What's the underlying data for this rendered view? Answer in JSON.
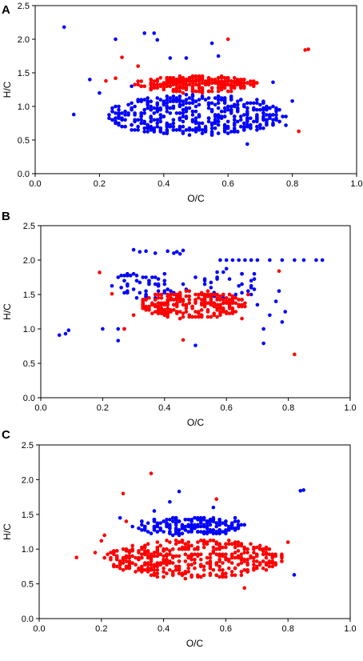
{
  "chart_data": [
    {
      "type": "scatter",
      "panel": "A",
      "xlabel": "O/C",
      "ylabel": "H/C",
      "xlim": [
        0.0,
        1.0
      ],
      "ylim": [
        0.0,
        2.5
      ],
      "xticks": [
        "0.0",
        "0.2",
        "0.4",
        "0.6",
        "0.8",
        "1.0"
      ],
      "yticks": [
        "0.0",
        "0.5",
        "1.0",
        "1.5",
        "2.0",
        "2.5"
      ],
      "colors": [
        "#0000ff",
        "#ff0000"
      ],
      "series": [
        {
          "color": "#0000ff",
          "clusters": [
            {
              "cx": 0.5,
              "cy": 0.87,
              "rx": 0.28,
              "ry": 0.3,
              "n": 430
            }
          ],
          "points": [
            [
              0.09,
              2.18
            ],
            [
              0.12,
              0.88
            ],
            [
              0.17,
              1.4
            ],
            [
              0.25,
              2.0
            ],
            [
              0.34,
              2.09
            ],
            [
              0.37,
              2.09
            ],
            [
              0.38,
              1.99
            ],
            [
              0.47,
              1.72
            ],
            [
              0.55,
              1.94
            ],
            [
              0.57,
              1.75
            ],
            [
              0.2,
              1.2
            ],
            [
              0.3,
              1.3
            ],
            [
              0.66,
              0.44
            ],
            [
              0.78,
              0.72
            ],
            [
              0.8,
              1.08
            ],
            [
              0.74,
              1.36
            ],
            [
              0.42,
              1.72
            ]
          ]
        },
        {
          "color": "#ff0000",
          "clusters": [
            {
              "cx": 0.5,
              "cy": 1.33,
              "rx": 0.19,
              "ry": 0.13,
              "n": 260
            }
          ],
          "points": [
            [
              0.27,
              1.73
            ],
            [
              0.25,
              1.42
            ],
            [
              0.6,
              2.0
            ],
            [
              0.84,
              1.84
            ],
            [
              0.85,
              1.85
            ],
            [
              0.82,
              0.63
            ],
            [
              0.64,
              1.4
            ],
            [
              0.32,
              1.6
            ],
            [
              0.22,
              1.38
            ]
          ]
        }
      ]
    },
    {
      "type": "scatter",
      "panel": "B",
      "xlabel": "O/C",
      "ylabel": "H/C",
      "xlim": [
        0.0,
        1.0
      ],
      "ylim": [
        0.0,
        2.5
      ],
      "xticks": [
        "0.0",
        "0.2",
        "0.4",
        "0.6",
        "0.8",
        "1.0"
      ],
      "yticks": [
        "0.0",
        "0.5",
        "1.0",
        "1.5",
        "2.0",
        "2.5"
      ],
      "colors": [
        "#0000ff",
        "#ff0000"
      ],
      "series": [
        {
          "color": "#0000ff",
          "clusters": [
            {
              "cx": 0.35,
              "cy": 1.62,
              "rx": 0.13,
              "ry": 0.2,
              "n": 55
            },
            {
              "cx": 0.62,
              "cy": 1.65,
              "rx": 0.1,
              "ry": 0.22,
              "n": 30
            }
          ],
          "points": [
            [
              0.06,
              0.91
            ],
            [
              0.08,
              0.93
            ],
            [
              0.09,
              0.98
            ],
            [
              0.2,
              1.0
            ],
            [
              0.25,
              1.0
            ],
            [
              0.27,
              1.0
            ],
            [
              0.25,
              0.83
            ],
            [
              0.3,
              2.15
            ],
            [
              0.32,
              2.12
            ],
            [
              0.34,
              2.13
            ],
            [
              0.37,
              2.1
            ],
            [
              0.41,
              2.13
            ],
            [
              0.43,
              2.1
            ],
            [
              0.44,
              2.12
            ],
            [
              0.45,
              2.09
            ],
            [
              0.46,
              2.14
            ],
            [
              0.5,
              1.75
            ],
            [
              0.5,
              0.76
            ],
            [
              0.58,
              2.0
            ],
            [
              0.6,
              2.0
            ],
            [
              0.62,
              2.0
            ],
            [
              0.64,
              2.0
            ],
            [
              0.66,
              2.0
            ],
            [
              0.68,
              2.0
            ],
            [
              0.7,
              2.0
            ],
            [
              0.74,
              2.0
            ],
            [
              0.78,
              2.0
            ],
            [
              0.82,
              2.0
            ],
            [
              0.85,
              2.0
            ],
            [
              0.89,
              2.0
            ],
            [
              0.91,
              2.0
            ],
            [
              0.72,
              1.0
            ],
            [
              0.72,
              0.79
            ],
            [
              0.74,
              1.2
            ],
            [
              0.76,
              1.4
            ],
            [
              0.78,
              1.1
            ],
            [
              0.79,
              1.25
            ],
            [
              0.77,
              1.55
            ],
            [
              0.65,
              1.8
            ],
            [
              0.68,
              1.5
            ],
            [
              0.7,
              1.35
            ]
          ]
        },
        {
          "color": "#ff0000",
          "clusters": [
            {
              "cx": 0.49,
              "cy": 1.35,
              "rx": 0.17,
              "ry": 0.2,
              "n": 250
            }
          ],
          "points": [
            [
              0.19,
              1.82
            ],
            [
              0.27,
              1.0
            ],
            [
              0.23,
              1.51
            ],
            [
              0.46,
              0.84
            ],
            [
              0.77,
              1.84
            ],
            [
              0.82,
              0.63
            ],
            [
              0.33,
              1.3
            ],
            [
              0.65,
              1.15
            ],
            [
              0.3,
              1.2
            ],
            [
              0.67,
              1.5
            ]
          ]
        }
      ]
    },
    {
      "type": "scatter",
      "panel": "C",
      "xlabel": "O/C",
      "ylabel": "H/C",
      "xlim": [
        0.0,
        1.0
      ],
      "ylim": [
        0.0,
        2.5
      ],
      "xticks": [
        "0.0",
        "0.2",
        "0.4",
        "0.6",
        "0.8",
        "1.0"
      ],
      "yticks": [
        "0.0",
        "0.5",
        "1.0",
        "1.5",
        "2.0",
        "2.5"
      ],
      "colors": [
        "#0000ff",
        "#ff0000"
      ],
      "series": [
        {
          "color": "#0000ff",
          "clusters": [
            {
              "cx": 0.48,
              "cy": 1.33,
              "rx": 0.18,
              "ry": 0.13,
              "n": 200
            }
          ],
          "points": [
            [
              0.45,
              1.83
            ],
            [
              0.84,
              1.84
            ],
            [
              0.85,
              1.85
            ],
            [
              0.82,
              0.63
            ],
            [
              0.42,
              1.68
            ],
            [
              0.26,
              1.45
            ],
            [
              0.63,
              1.45
            ],
            [
              0.37,
              1.55
            ],
            [
              0.56,
              1.6
            ]
          ]
        },
        {
          "color": "#ff0000",
          "clusters": [
            {
              "cx": 0.5,
              "cy": 0.86,
              "rx": 0.29,
              "ry": 0.28,
              "n": 440
            }
          ],
          "points": [
            [
              0.12,
              0.88
            ],
            [
              0.27,
              1.8
            ],
            [
              0.36,
              2.09
            ],
            [
              0.57,
              1.72
            ],
            [
              0.2,
              1.12
            ],
            [
              0.28,
              1.4
            ],
            [
              0.8,
              1.1
            ],
            [
              0.66,
              0.44
            ],
            [
              0.18,
              0.95
            ],
            [
              0.21,
              1.2
            ]
          ]
        }
      ]
    }
  ]
}
